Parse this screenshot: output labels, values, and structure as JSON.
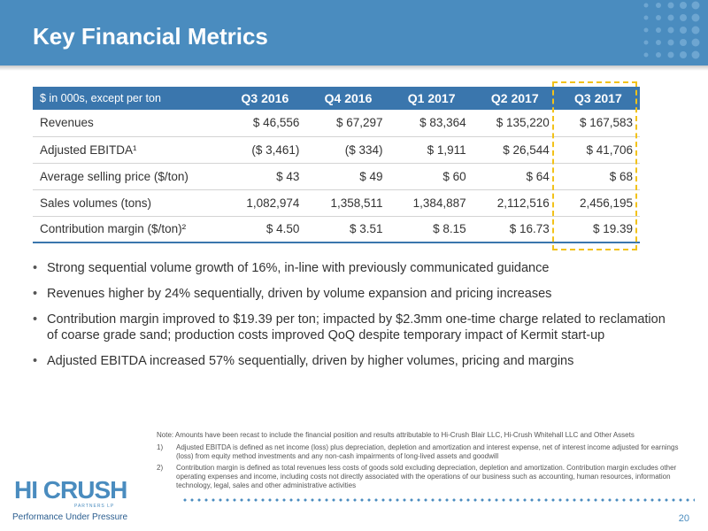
{
  "header": {
    "title": "Key Financial Metrics"
  },
  "table": {
    "unit_label": "$ in 000s, except per ton",
    "columns": [
      "Q3 2016",
      "Q4 2016",
      "Q1 2017",
      "Q2 2017",
      "Q3 2017"
    ],
    "highlighted_column": "Q3 2017",
    "rows": [
      {
        "label": "Revenues",
        "values": [
          "$ 46,556",
          "$ 67,297",
          "$ 83,364",
          "$ 135,220",
          "$ 167,583"
        ]
      },
      {
        "label": "Adjusted EBITDA¹",
        "values": [
          "($ 3,461)",
          "($ 334)",
          "$ 1,911",
          "$ 26,544",
          "$ 41,706"
        ]
      },
      {
        "label": "Average selling price ($/ton)",
        "values": [
          "$ 43",
          "$ 49",
          "$ 60",
          "$ 64",
          "$ 68"
        ]
      },
      {
        "label": "Sales volumes (tons)",
        "values": [
          "1,082,974",
          "1,358,511",
          "1,384,887",
          "2,112,516",
          "2,456,195"
        ]
      },
      {
        "label": "Contribution margin ($/ton)²",
        "values": [
          "$ 4.50",
          "$ 3.51",
          "$ 8.15",
          "$ 16.73",
          "$ 19.39"
        ]
      }
    ]
  },
  "bullets": [
    "Strong sequential volume growth of 16%, in-line with previously communicated guidance",
    "Revenues higher by 24% sequentially, driven by volume expansion and pricing increases",
    "Contribution margin improved to $19.39 per ton; impacted by $2.3mm one-time charge related to reclamation of coarse grade sand; production costs improved QoQ despite temporary impact of Kermit start-up",
    "Adjusted EBITDA increased 57% sequentially, driven by higher volumes, pricing and margins"
  ],
  "notes": {
    "main": "Note: Amounts have been recast to include the financial position and results attributable to Hi-Crush Blair LLC, Hi-Crush Whitehall LLC and Other Assets",
    "footnotes": [
      {
        "num": "1)",
        "text": "Adjusted EBITDA is defined as net income (loss) plus depreciation, depletion and amortization and interest expense, net of interest income adjusted for earnings (loss) from equity method investments and any non-cash impairments of long-lived assets and goodwill"
      },
      {
        "num": "2)",
        "text": "Contribution margin is defined as total revenues less costs of goods sold excluding depreciation, depletion and amortization. Contribution margin excludes other operating expenses and income, including costs not directly associated with the operations of our business such as accounting, human resources, information technology, legal, sales and other administrative activities"
      }
    ]
  },
  "logo": {
    "name": "HI CRUSH",
    "sub": "PARTNERS LP",
    "tagline": "Performance Under Pressure"
  },
  "page_number": "20",
  "colors": {
    "header_blue": "#4a8cbf",
    "table_header_blue": "#3a76ad",
    "highlight_yellow": "#f2c21a"
  }
}
